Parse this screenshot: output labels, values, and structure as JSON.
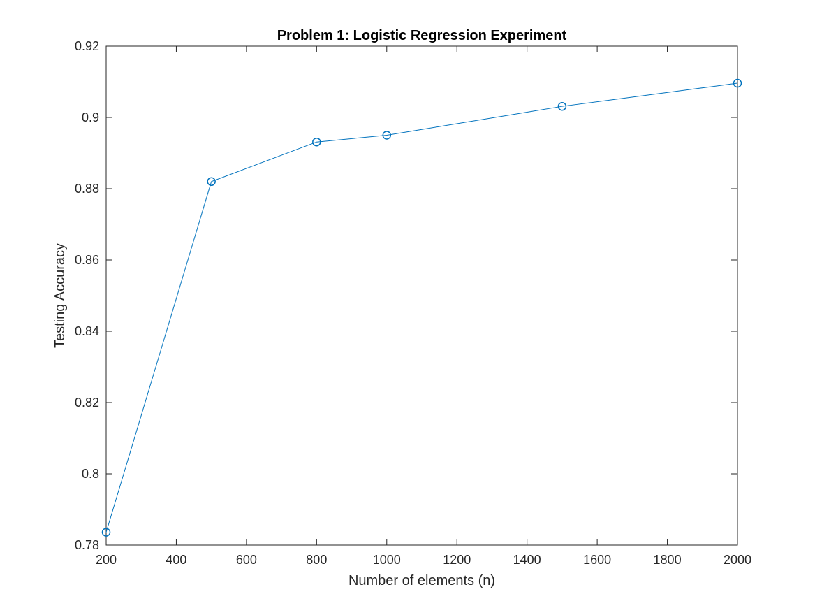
{
  "chart_data": {
    "type": "line",
    "title": "Problem 1: Logistic Regression Experiment",
    "xlabel": "Number of elements (n)",
    "ylabel": "Testing Accuracy",
    "xlim": [
      200,
      2000
    ],
    "ylim": [
      0.78,
      0.92
    ],
    "xticks": [
      200,
      400,
      600,
      800,
      1000,
      1200,
      1400,
      1600,
      1800,
      2000
    ],
    "xtick_labels": [
      "200",
      "400",
      "600",
      "800",
      "1000",
      "1200",
      "1400",
      "1600",
      "1800",
      "2000"
    ],
    "yticks": [
      0.78,
      0.8,
      0.82,
      0.84,
      0.86,
      0.88,
      0.9,
      0.92
    ],
    "ytick_labels": [
      "0.78",
      "0.8",
      "0.82",
      "0.84",
      "0.86",
      "0.88",
      "0.9",
      "0.92"
    ],
    "grid": false,
    "legend": "none",
    "marker": "circle",
    "series": [
      {
        "color": "#0072BD",
        "x": [
          200,
          500,
          800,
          1000,
          1500,
          2000
        ],
        "y": [
          0.7836,
          0.882,
          0.8931,
          0.895,
          0.9031,
          0.9096
        ]
      }
    ]
  }
}
